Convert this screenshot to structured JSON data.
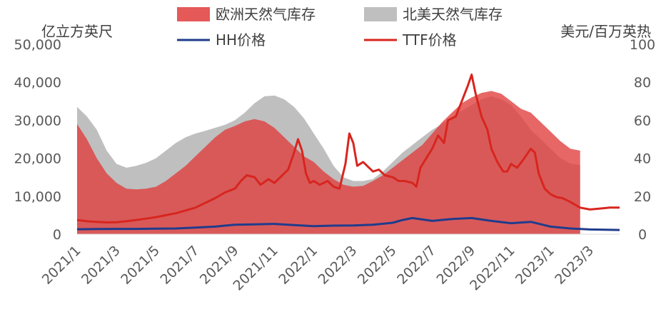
{
  "chart_data": {
    "type": "area+line",
    "title": "",
    "left_axis": {
      "unit_label": "亿立方英尺",
      "ylim": [
        0,
        50000
      ],
      "ticks": [
        "0",
        "10,000",
        "20,000",
        "30,000",
        "40,000",
        "50,000"
      ],
      "tick_values": [
        0,
        10000,
        20000,
        30000,
        40000,
        50000
      ]
    },
    "right_axis": {
      "unit_label": "美元/百万英热",
      "ylim": [
        0,
        100
      ],
      "ticks": [
        "0",
        "20",
        "40",
        "60",
        "80",
        "100"
      ],
      "tick_values": [
        0,
        20,
        40,
        60,
        80,
        100
      ]
    },
    "x_axis": {
      "start": "2021-01",
      "end": "2023-04",
      "tick_labels": [
        "2021/1",
        "2021/3",
        "2021/5",
        "2021/7",
        "2021/9",
        "2021/11",
        "2022/1",
        "2022/3",
        "2022/5",
        "2022/7",
        "2022/9",
        "2022/11",
        "2023/1",
        "2023/3"
      ],
      "tick_positions": [
        0,
        2,
        4,
        6,
        8,
        10,
        12,
        14,
        16,
        18,
        20,
        22,
        24,
        26
      ]
    },
    "legend": {
      "placement": "top",
      "items": [
        {
          "name": "欧洲天然气库存",
          "kind": "area",
          "color": "#e03c3c"
        },
        {
          "name": "北美天然气库存",
          "kind": "area",
          "color": "#bfbfbf"
        },
        {
          "name": "HH价格",
          "kind": "line",
          "color": "#1f3c8c"
        },
        {
          "name": "TTF价格",
          "kind": "line",
          "color": "#d7261e"
        }
      ]
    },
    "series": [
      {
        "name": "北美天然气库存",
        "axis": "left",
        "kind": "area",
        "color": "#bfbfbf",
        "points": [
          [
            0,
            33500
          ],
          [
            0.5,
            31000
          ],
          [
            1,
            27500
          ],
          [
            1.5,
            22000
          ],
          [
            2,
            18500
          ],
          [
            2.5,
            17500
          ],
          [
            3,
            18000
          ],
          [
            3.5,
            18800
          ],
          [
            4,
            20000
          ],
          [
            4.5,
            22000
          ],
          [
            5,
            24000
          ],
          [
            5.5,
            25500
          ],
          [
            6,
            26500
          ],
          [
            6.5,
            27200
          ],
          [
            7,
            28000
          ],
          [
            7.5,
            28800
          ],
          [
            8,
            30000
          ],
          [
            8.5,
            32000
          ],
          [
            9,
            34500
          ],
          [
            9.5,
            36300
          ],
          [
            10,
            36500
          ],
          [
            10.5,
            35500
          ],
          [
            11,
            33500
          ],
          [
            11.5,
            30500
          ],
          [
            12,
            26500
          ],
          [
            12.5,
            22500
          ],
          [
            13,
            18000
          ],
          [
            13.5,
            15000
          ],
          [
            14,
            14000
          ],
          [
            14.5,
            14000
          ],
          [
            15,
            14500
          ],
          [
            15.5,
            16500
          ],
          [
            16,
            19000
          ],
          [
            16.5,
            21500
          ],
          [
            17,
            23500
          ],
          [
            17.5,
            25500
          ],
          [
            18,
            27500
          ],
          [
            18.5,
            29000
          ],
          [
            19,
            30800
          ],
          [
            19.5,
            32500
          ],
          [
            20,
            34000
          ],
          [
            20.5,
            35500
          ],
          [
            21,
            36300
          ],
          [
            21.5,
            35500
          ],
          [
            22,
            34000
          ],
          [
            22.5,
            31000
          ],
          [
            23,
            27500
          ],
          [
            23.5,
            25000
          ],
          [
            24,
            22500
          ],
          [
            24.5,
            20000
          ],
          [
            25,
            18600
          ],
          [
            25.5,
            18200
          ]
        ]
      },
      {
        "name": "欧洲天然气库存",
        "axis": "left",
        "kind": "area",
        "color": "#e03c3c",
        "points": [
          [
            0,
            29000
          ],
          [
            0.5,
            25000
          ],
          [
            1,
            20000
          ],
          [
            1.5,
            16000
          ],
          [
            2,
            13500
          ],
          [
            2.5,
            12000
          ],
          [
            3,
            11800
          ],
          [
            3.5,
            12000
          ],
          [
            4,
            12500
          ],
          [
            4.5,
            14000
          ],
          [
            5,
            16000
          ],
          [
            5.5,
            18000
          ],
          [
            6,
            20500
          ],
          [
            6.5,
            23000
          ],
          [
            7,
            25500
          ],
          [
            7.5,
            27500
          ],
          [
            8,
            28500
          ],
          [
            8.5,
            29700
          ],
          [
            9,
            30300
          ],
          [
            9.5,
            29700
          ],
          [
            10,
            28000
          ],
          [
            10.5,
            25500
          ],
          [
            11,
            23000
          ],
          [
            11.5,
            20500
          ],
          [
            12,
            19000
          ],
          [
            12.5,
            16500
          ],
          [
            13,
            14500
          ],
          [
            13.5,
            13000
          ],
          [
            14,
            12500
          ],
          [
            14.5,
            12700
          ],
          [
            15,
            14000
          ],
          [
            15.5,
            15500
          ],
          [
            16,
            17500
          ],
          [
            16.5,
            19500
          ],
          [
            17,
            21500
          ],
          [
            17.5,
            23500
          ],
          [
            18,
            26500
          ],
          [
            18.5,
            29500
          ],
          [
            19,
            32000
          ],
          [
            19.5,
            34500
          ],
          [
            20,
            36000
          ],
          [
            20.5,
            37200
          ],
          [
            21,
            37700
          ],
          [
            21.5,
            37000
          ],
          [
            22,
            35000
          ],
          [
            22.5,
            33000
          ],
          [
            23,
            32000
          ],
          [
            23.5,
            29500
          ],
          [
            24,
            27000
          ],
          [
            24.5,
            24500
          ],
          [
            25,
            22500
          ],
          [
            25.5,
            22000
          ]
        ]
      },
      {
        "name": "TTF价格",
        "axis": "right",
        "kind": "line",
        "color": "#d7261e",
        "points": [
          [
            0,
            7.5
          ],
          [
            0.5,
            6.8
          ],
          [
            1,
            6.5
          ],
          [
            1.5,
            6.2
          ],
          [
            2,
            6.3
          ],
          [
            2.5,
            6.8
          ],
          [
            3,
            7.5
          ],
          [
            3.5,
            8.2
          ],
          [
            4,
            9
          ],
          [
            4.5,
            10
          ],
          [
            5,
            11
          ],
          [
            5.5,
            12.5
          ],
          [
            6,
            14
          ],
          [
            6.5,
            16.5
          ],
          [
            7,
            19
          ],
          [
            7.5,
            22
          ],
          [
            8,
            24
          ],
          [
            8.3,
            28
          ],
          [
            8.6,
            31
          ],
          [
            9,
            30
          ],
          [
            9.3,
            26
          ],
          [
            9.7,
            29
          ],
          [
            10,
            27
          ],
          [
            10.3,
            30
          ],
          [
            10.7,
            34
          ],
          [
            11,
            43
          ],
          [
            11.2,
            50
          ],
          [
            11.4,
            44
          ],
          [
            11.6,
            32
          ],
          [
            11.8,
            27
          ],
          [
            12,
            28
          ],
          [
            12.3,
            26
          ],
          [
            12.7,
            28
          ],
          [
            13,
            25
          ],
          [
            13.3,
            24
          ],
          [
            13.6,
            37
          ],
          [
            13.8,
            53
          ],
          [
            14,
            48
          ],
          [
            14.2,
            36
          ],
          [
            14.5,
            38
          ],
          [
            14.8,
            35
          ],
          [
            15,
            33
          ],
          [
            15.3,
            34
          ],
          [
            15.6,
            31
          ],
          [
            16,
            30
          ],
          [
            16.3,
            28
          ],
          [
            16.6,
            28
          ],
          [
            17,
            27
          ],
          [
            17.2,
            25
          ],
          [
            17.4,
            35
          ],
          [
            17.7,
            40
          ],
          [
            18,
            45
          ],
          [
            18.3,
            52
          ],
          [
            18.6,
            48
          ],
          [
            18.8,
            60
          ],
          [
            19.2,
            62
          ],
          [
            19.5,
            70
          ],
          [
            19.8,
            78
          ],
          [
            20,
            84
          ],
          [
            20.2,
            74
          ],
          [
            20.5,
            62
          ],
          [
            20.8,
            55
          ],
          [
            21,
            45
          ],
          [
            21.3,
            38
          ],
          [
            21.6,
            33
          ],
          [
            21.8,
            33
          ],
          [
            22,
            37
          ],
          [
            22.3,
            35
          ],
          [
            22.6,
            39
          ],
          [
            23,
            45
          ],
          [
            23.2,
            43
          ],
          [
            23.4,
            32
          ],
          [
            23.7,
            24
          ],
          [
            24,
            21
          ],
          [
            24.3,
            19.5
          ],
          [
            24.6,
            19
          ],
          [
            25,
            17
          ],
          [
            25.5,
            14
          ],
          [
            26,
            13
          ],
          [
            26.5,
            13.5
          ],
          [
            27,
            14
          ],
          [
            27.5,
            14
          ]
        ]
      },
      {
        "name": "HH价格",
        "axis": "right",
        "kind": "line",
        "color": "#1f3c8c",
        "points": [
          [
            0,
            2.6
          ],
          [
            1,
            2.7
          ],
          [
            2,
            2.8
          ],
          [
            3,
            2.8
          ],
          [
            4,
            2.9
          ],
          [
            5,
            3.0
          ],
          [
            6,
            3.5
          ],
          [
            7,
            4.0
          ],
          [
            7.5,
            4.5
          ],
          [
            8,
            5.0
          ],
          [
            9,
            5.2
          ],
          [
            10,
            5.4
          ],
          [
            11,
            4.8
          ],
          [
            12,
            4.2
          ],
          [
            13,
            4.5
          ],
          [
            14,
            4.6
          ],
          [
            15,
            5.0
          ],
          [
            16,
            6.0
          ],
          [
            16.5,
            7.5
          ],
          [
            17,
            8.5
          ],
          [
            18,
            7.0
          ],
          [
            19,
            8.0
          ],
          [
            20,
            8.5
          ],
          [
            21,
            7.0
          ],
          [
            22,
            5.8
          ],
          [
            23,
            6.5
          ],
          [
            24,
            4.0
          ],
          [
            25,
            3.0
          ],
          [
            26,
            2.5
          ],
          [
            27,
            2.3
          ],
          [
            27.5,
            2.2
          ]
        ]
      }
    ]
  }
}
